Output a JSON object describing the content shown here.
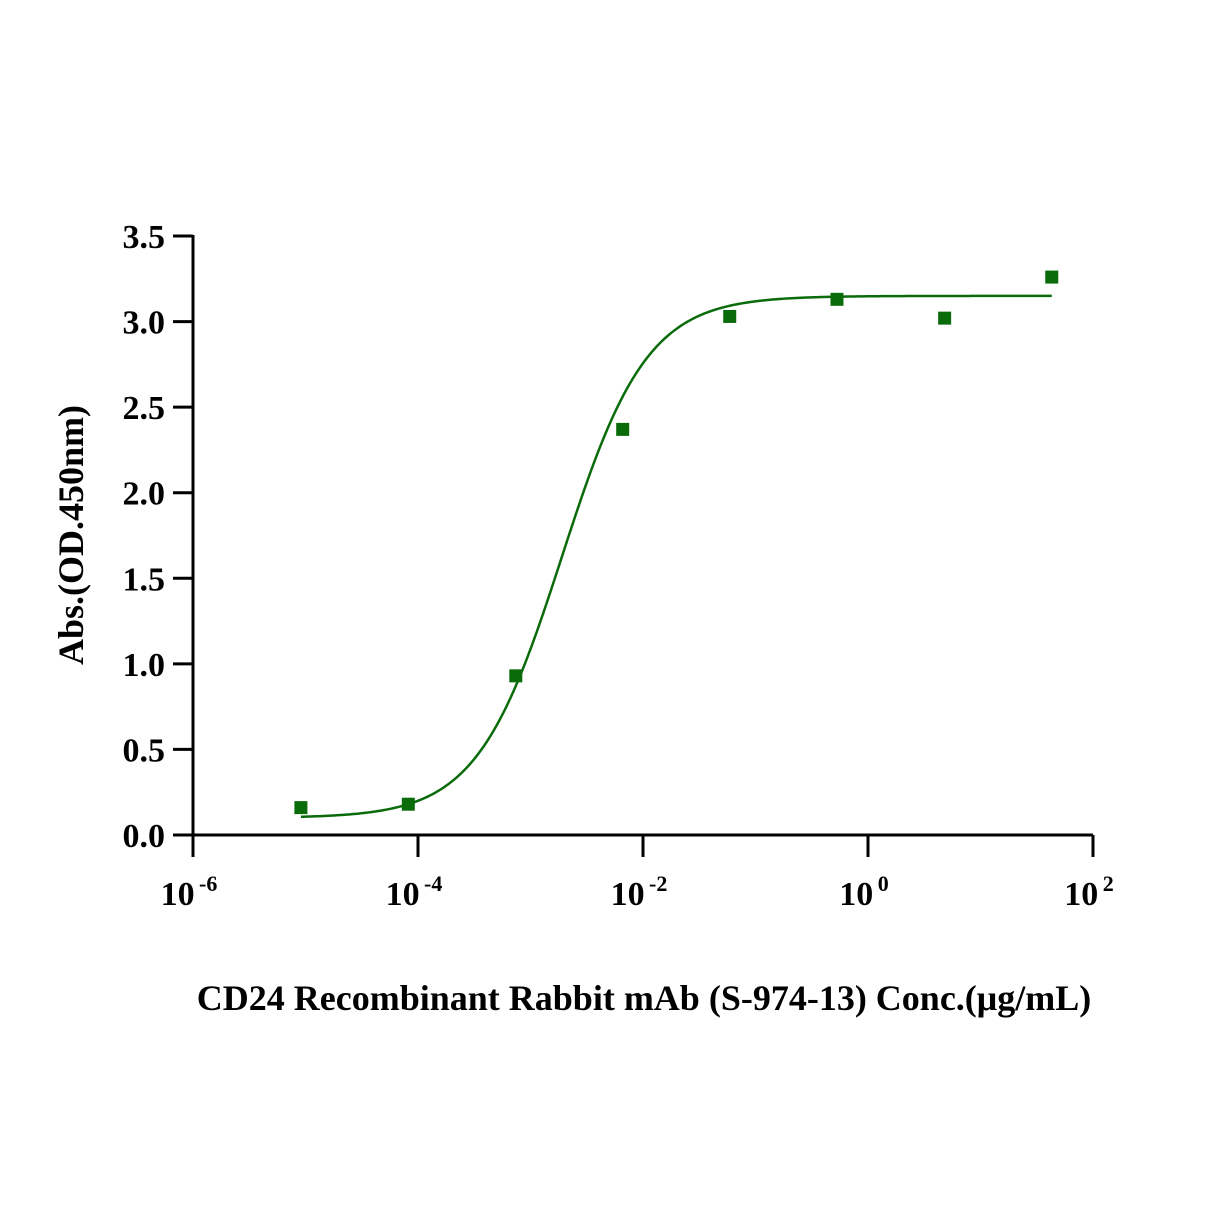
{
  "chart_data": {
    "type": "scatter",
    "xlabel": "CD24 Recombinant Rabbit mAb (S-974-13) Conc.(μg/mL)",
    "ylabel": "Abs.(OD.450nm)",
    "xscale": "log",
    "xlim": [
      1e-06,
      100
    ],
    "ylim": [
      0,
      3.5
    ],
    "x_ticks": [
      {
        "base": "10",
        "exp": "-6",
        "value": 1e-06
      },
      {
        "base": "10",
        "exp": "-4",
        "value": 0.0001
      },
      {
        "base": "10",
        "exp": "-2",
        "value": 0.01
      },
      {
        "base": "10",
        "exp": "0",
        "value": 1
      },
      {
        "base": "10",
        "exp": "2",
        "value": 100
      }
    ],
    "y_ticks": [
      "0.0",
      "0.5",
      "1.0",
      "1.5",
      "2.0",
      "2.5",
      "3.0",
      "3.5"
    ],
    "grid": false,
    "color": "#0a6b0a",
    "series": [
      {
        "marker": "square",
        "x": [
          9.1e-06,
          8.2e-05,
          0.00074,
          0.0066,
          0.059,
          0.53,
          4.8,
          43
        ],
        "y": [
          0.16,
          0.18,
          0.93,
          2.37,
          3.03,
          3.13,
          3.02,
          3.26
        ]
      }
    ],
    "fit": {
      "type": "4PL",
      "bottom": 0.1,
      "top": 3.15,
      "ec50": 0.0019,
      "hill": 1.15,
      "x_range": [
        9.1e-06,
        43
      ]
    }
  }
}
